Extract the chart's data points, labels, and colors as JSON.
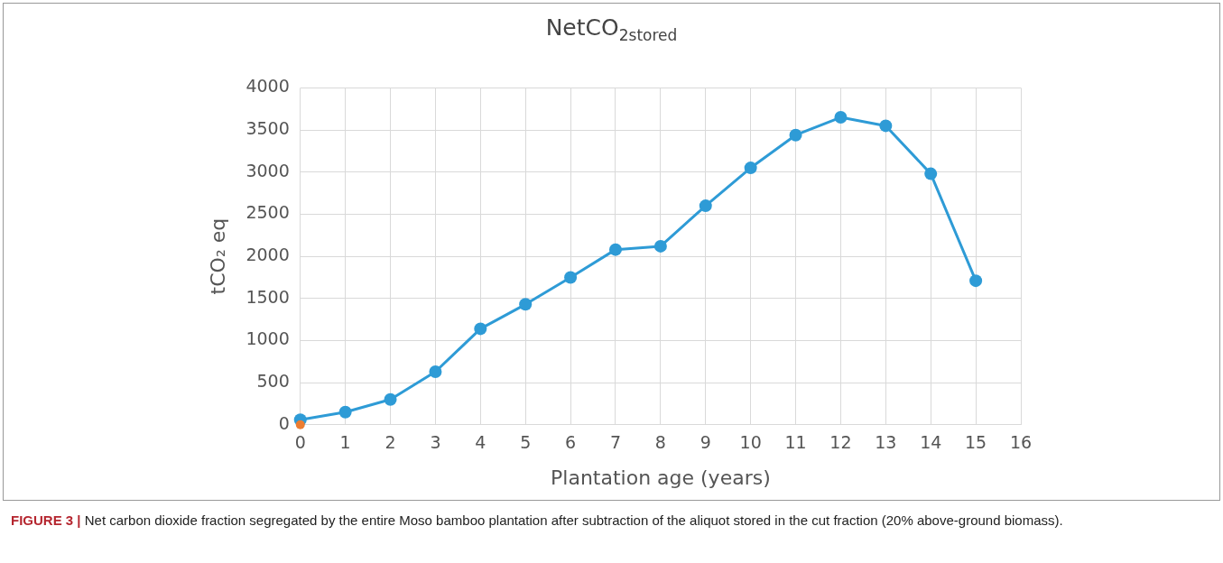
{
  "chart_data": {
    "type": "line",
    "title": "NetCO$_{2stored}$",
    "xlabel": "Plantation age (years)",
    "ylabel": "tCO₂ eq",
    "x": [
      0,
      1,
      2,
      3,
      4,
      5,
      6,
      7,
      8,
      9,
      10,
      11,
      12,
      13,
      14,
      15
    ],
    "series": [
      {
        "color": "#2e9bd6",
        "values": [
          60,
          150,
          300,
          630,
          1140,
          1430,
          1750,
          2080,
          2120,
          2600,
          3050,
          3440,
          3650,
          3550,
          2980,
          1710
        ]
      },
      {
        "type": "scatter",
        "color": "#ed7d31",
        "x": [
          0
        ],
        "values": [
          0
        ]
      }
    ],
    "xlim": [
      0,
      16
    ],
    "xticks": [
      0,
      1,
      2,
      3,
      4,
      5,
      6,
      7,
      8,
      9,
      10,
      11,
      12,
      13,
      14,
      15,
      16
    ],
    "ylim": [
      0,
      4000
    ],
    "yticks": [
      0,
      500,
      1000,
      1500,
      2000,
      2500,
      3000,
      3500,
      4000
    ],
    "grid": true,
    "legend": false,
    "marker": "circle",
    "line_style": "solid",
    "annotations": [
      "FIGURE 3 | Net carbon dioxide fraction segregated by the entire Moso bamboo plantation after subtraction of the aliquot stored in the cut fraction (20% above-ground biomass)."
    ]
  }
}
